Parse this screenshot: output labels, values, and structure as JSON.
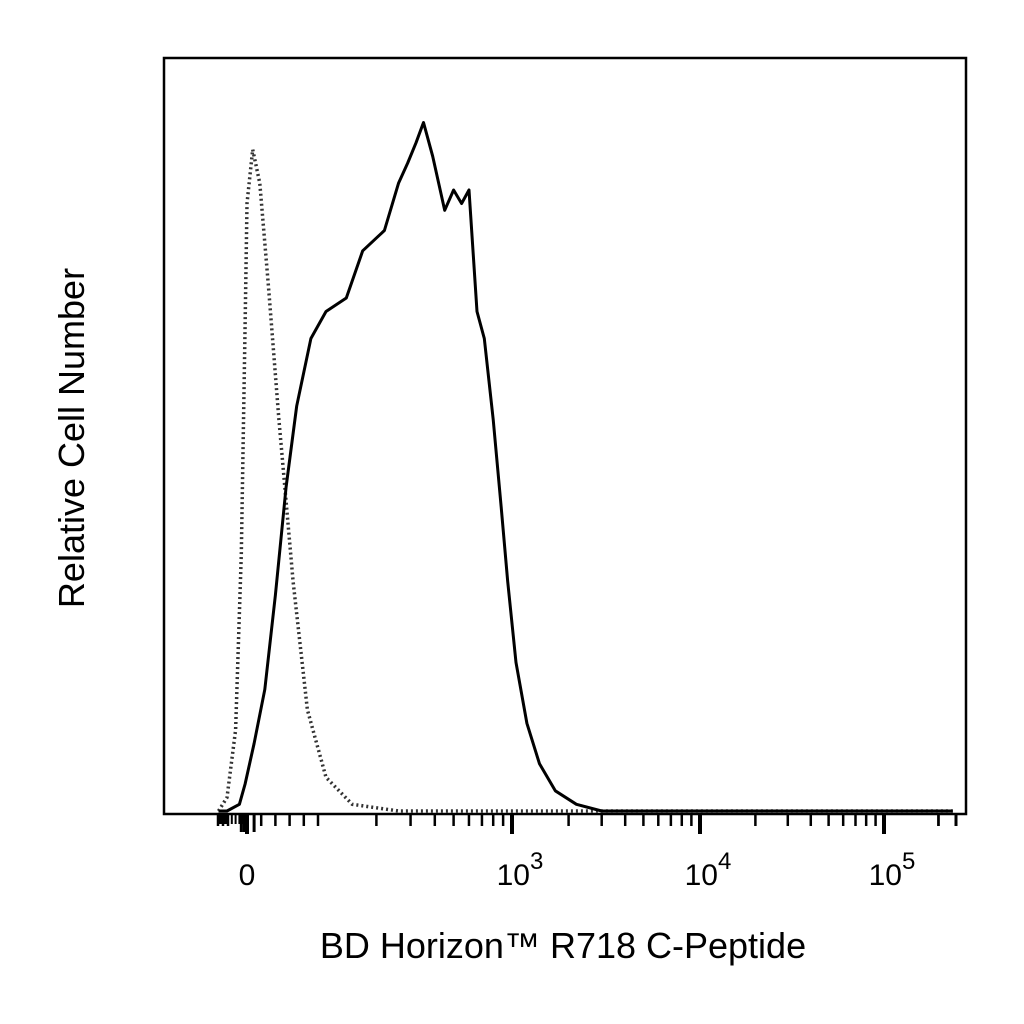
{
  "chart_data": {
    "type": "line",
    "title": "",
    "xlabel": "BD Horizon™ R718  C-Peptide",
    "ylabel": "Relative Cell Number",
    "x_scale": "biexponential",
    "xlim": [
      -300,
      250000
    ],
    "ylim": [
      0,
      1.05
    ],
    "grid": false,
    "legend": "none",
    "x_tick_labels": [
      {
        "value": 0,
        "base": "0",
        "exp": ""
      },
      {
        "value": 1000,
        "base": "10",
        "exp": "3"
      },
      {
        "value": 10000,
        "base": "10",
        "exp": "4"
      },
      {
        "value": 100000,
        "base": "10",
        "exp": "5"
      }
    ],
    "series": [
      {
        "style": "dotted",
        "color": "#333333",
        "points": [
          [
            -290,
            0.0
          ],
          [
            -120,
            0.02
          ],
          [
            -60,
            0.12
          ],
          [
            -30,
            0.38
          ],
          [
            -10,
            0.72
          ],
          [
            0,
            0.9
          ],
          [
            8,
            0.98
          ],
          [
            18,
            0.93
          ],
          [
            30,
            0.78
          ],
          [
            45,
            0.58
          ],
          [
            65,
            0.34
          ],
          [
            85,
            0.15
          ],
          [
            110,
            0.05
          ],
          [
            150,
            0.01
          ],
          [
            260,
            0.0
          ],
          [
            600,
            0.0
          ],
          [
            3000,
            0.0
          ],
          [
            30000,
            0.0
          ],
          [
            240000,
            0.0
          ]
        ]
      },
      {
        "style": "solid",
        "color": "#000000",
        "points": [
          [
            -290,
            0.0
          ],
          [
            -120,
            0.0
          ],
          [
            -40,
            0.01
          ],
          [
            -10,
            0.04
          ],
          [
            10,
            0.1
          ],
          [
            25,
            0.18
          ],
          [
            40,
            0.32
          ],
          [
            55,
            0.48
          ],
          [
            70,
            0.6
          ],
          [
            90,
            0.7
          ],
          [
            110,
            0.74
          ],
          [
            140,
            0.76
          ],
          [
            170,
            0.83
          ],
          [
            220,
            0.86
          ],
          [
            260,
            0.93
          ],
          [
            290,
            0.96
          ],
          [
            320,
            0.99
          ],
          [
            350,
            1.02
          ],
          [
            390,
            0.97
          ],
          [
            450,
            0.89
          ],
          [
            500,
            0.92
          ],
          [
            550,
            0.9
          ],
          [
            600,
            0.92
          ],
          [
            660,
            0.74
          ],
          [
            720,
            0.7
          ],
          [
            800,
            0.58
          ],
          [
            880,
            0.45
          ],
          [
            950,
            0.34
          ],
          [
            1050,
            0.22
          ],
          [
            1200,
            0.13
          ],
          [
            1400,
            0.07
          ],
          [
            1700,
            0.03
          ],
          [
            2200,
            0.01
          ],
          [
            3000,
            0.0
          ],
          [
            10000,
            0.0
          ],
          [
            100000,
            0.0
          ],
          [
            240000,
            0.0
          ]
        ]
      }
    ]
  }
}
